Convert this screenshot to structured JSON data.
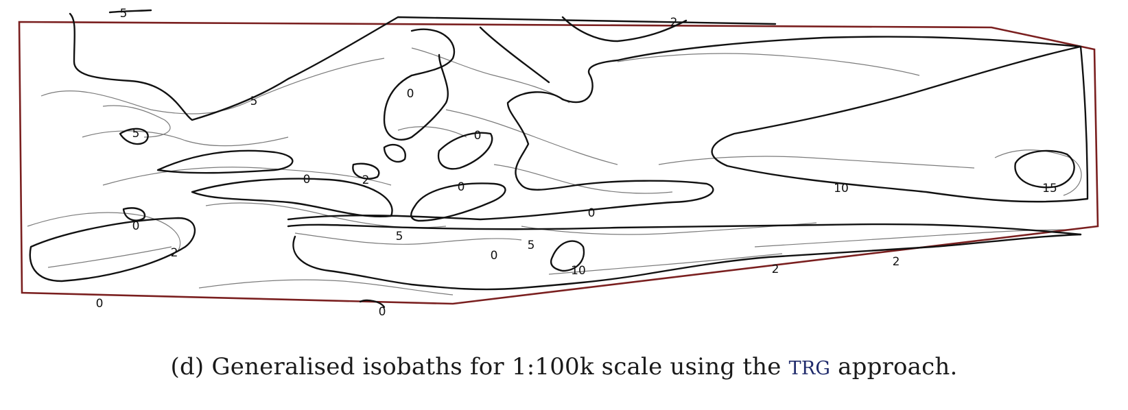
{
  "map": {
    "colors": {
      "boundary": "#7a1f1f",
      "generalised_isobath": "#111111",
      "original_isobath": "#7a7a7a"
    },
    "depth_labels": [
      "5",
      "2",
      "5",
      "0",
      "5",
      "0",
      "2",
      "0",
      "0",
      "0",
      "2",
      "5",
      "5",
      "0",
      "0",
      "10",
      "10",
      "15",
      "2",
      "2",
      "0",
      "0"
    ]
  },
  "caption": {
    "before": "(d) Generalised isobaths for 1:100k scale using the ",
    "acronym": "TRG",
    "after": " approach."
  }
}
